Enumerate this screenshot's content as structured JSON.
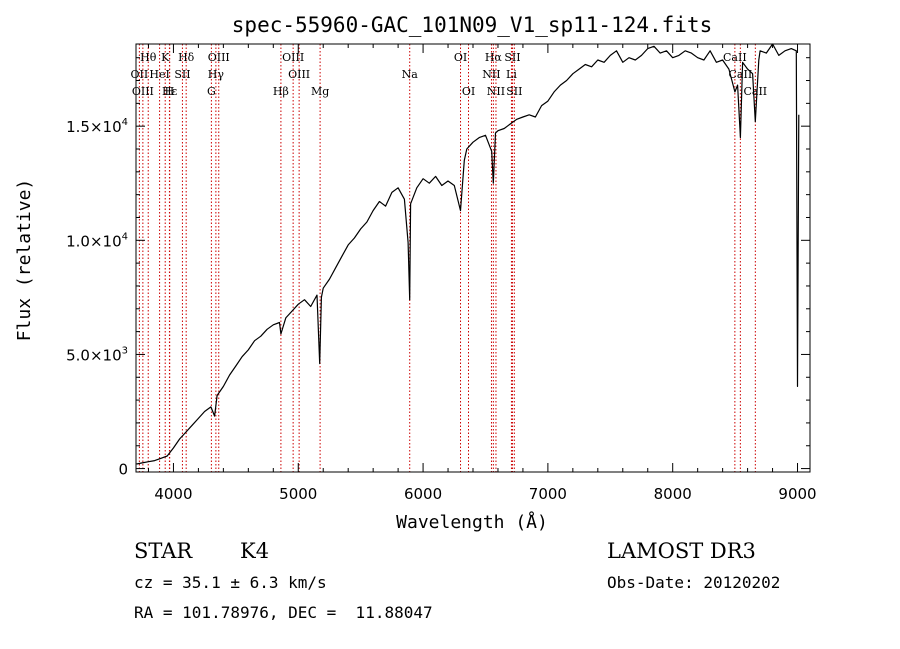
{
  "chart_data": {
    "type": "line",
    "title": "spec-55960-GAC_101N09_V1_sp11-124.fits",
    "xlabel": "Wavelength (Å)",
    "ylabel": "Flux (relative)",
    "xlim": [
      3700,
      9100
    ],
    "ylim": [
      -150,
      18600
    ],
    "xticks": [
      4000,
      5000,
      6000,
      7000,
      8000,
      9000
    ],
    "xtick_labels": [
      "4000",
      "5000",
      "6000",
      "7000",
      "8000",
      "9000"
    ],
    "yticks": [
      0,
      5000,
      10000,
      15000
    ],
    "ytick_labels": [
      {
        "mant": "0",
        "exp": ""
      },
      {
        "mant": "5.0×10",
        "exp": "3"
      },
      {
        "mant": "1.0×10",
        "exp": "4"
      },
      {
        "mant": "1.5×10",
        "exp": "4"
      }
    ],
    "series": [
      {
        "name": "spectrum",
        "x": [
          3705,
          3750,
          3800,
          3850,
          3900,
          3950,
          4000,
          4050,
          4100,
          4150,
          4200,
          4250,
          4300,
          4330,
          4350,
          4400,
          4450,
          4500,
          4550,
          4600,
          4650,
          4700,
          4750,
          4800,
          4850,
          4861,
          4900,
          4950,
          5000,
          5050,
          5100,
          5150,
          5172,
          5185,
          5200,
          5250,
          5300,
          5350,
          5400,
          5450,
          5500,
          5550,
          5600,
          5650,
          5700,
          5750,
          5800,
          5850,
          5880,
          5893,
          5900,
          5950,
          6000,
          6050,
          6100,
          6150,
          6200,
          6250,
          6300,
          6330,
          6350,
          6400,
          6450,
          6500,
          6550,
          6563,
          6580,
          6600,
          6650,
          6700,
          6750,
          6800,
          6850,
          6900,
          6950,
          7000,
          7050,
          7100,
          7150,
          7200,
          7250,
          7300,
          7350,
          7400,
          7450,
          7500,
          7550,
          7600,
          7650,
          7700,
          7750,
          7800,
          7850,
          7900,
          7950,
          8000,
          8050,
          8100,
          8150,
          8200,
          8250,
          8300,
          8350,
          8400,
          8450,
          8498,
          8520,
          8542,
          8560,
          8600,
          8640,
          8662,
          8690,
          8700,
          8750,
          8800,
          8850,
          8900,
          8950,
          8990,
          9000,
          9010
        ],
        "y": [
          200,
          250,
          300,
          350,
          450,
          550,
          900,
          1300,
          1600,
          1900,
          2200,
          2500,
          2700,
          2300,
          3200,
          3600,
          4100,
          4500,
          4900,
          5200,
          5600,
          5800,
          6100,
          6300,
          6400,
          5900,
          6600,
          6900,
          7200,
          7400,
          7100,
          7600,
          4600,
          7500,
          7900,
          8300,
          8800,
          9300,
          9800,
          10100,
          10500,
          10800,
          11300,
          11700,
          11500,
          12100,
          12300,
          11800,
          9900,
          7400,
          11600,
          12300,
          12700,
          12500,
          12800,
          12400,
          12600,
          12400,
          11300,
          13500,
          14000,
          14300,
          14500,
          14600,
          13900,
          12500,
          14700,
          14800,
          14900,
          15100,
          15300,
          15400,
          15500,
          15400,
          15900,
          16100,
          16500,
          16800,
          17000,
          17300,
          17500,
          17700,
          17600,
          17900,
          17800,
          18100,
          18300,
          17800,
          18000,
          17900,
          18100,
          18400,
          18500,
          18200,
          18300,
          18000,
          18100,
          18300,
          18200,
          18000,
          17900,
          18300,
          17800,
          17900,
          17500,
          16500,
          16800,
          14500,
          17800,
          17500,
          17300,
          15200,
          17900,
          18300,
          18200,
          18600,
          18100,
          18300,
          18400,
          18300,
          3600,
          15500
        ]
      }
    ],
    "lines": [
      {
        "label": "Hθ",
        "x": 3798,
        "row": 1,
        "color": "#cc0000"
      },
      {
        "label": "K",
        "x": 3934,
        "row": 1,
        "color": "#cc0000"
      },
      {
        "label": "Hδ",
        "x": 4102,
        "row": 1,
        "color": "#cc0000"
      },
      {
        "label": "OIII",
        "x": 4363,
        "row": 1,
        "color": "#cc0000"
      },
      {
        "label": "OIII",
        "x": 4959,
        "row": 1,
        "color": "#cc0000"
      },
      {
        "label": "OI",
        "x": 6300,
        "row": 1,
        "color": "#cc0000"
      },
      {
        "label": "Hα",
        "x": 6563,
        "row": 1,
        "color": "#cc0000"
      },
      {
        "label": "SII",
        "x": 6716,
        "row": 1,
        "color": "#cc0000"
      },
      {
        "label": "CaII",
        "x": 8498,
        "row": 1,
        "color": "#cc0000"
      },
      {
        "label": "OII",
        "x": 3727,
        "row": 2,
        "color": "#cc0000"
      },
      {
        "label": "HeI",
        "x": 3889,
        "row": 2,
        "color": "#cc0000"
      },
      {
        "label": "SII",
        "x": 4072,
        "row": 2,
        "color": "#cc0000"
      },
      {
        "label": "Hγ",
        "x": 4340,
        "row": 2,
        "color": "#cc0000"
      },
      {
        "label": "OIII",
        "x": 5007,
        "row": 2,
        "color": "#cc0000"
      },
      {
        "label": "Na",
        "x": 5893,
        "row": 2,
        "color": "#cc0000"
      },
      {
        "label": "NII",
        "x": 6548,
        "row": 2,
        "color": "#cc0000"
      },
      {
        "label": "Li",
        "x": 6708,
        "row": 2,
        "color": "#cc0000"
      },
      {
        "label": "CaII",
        "x": 8542,
        "row": 2,
        "color": "#cc0000"
      },
      {
        "label": "OIII",
        "x": 3755,
        "row": 3,
        "color": "#cc0000"
      },
      {
        "label": "Hε",
        "x": 3970,
        "row": 3,
        "color": "#cc0000"
      },
      {
        "label": "H",
        "x": 3968,
        "row": 3,
        "color": "#cc0000"
      },
      {
        "label": "G",
        "x": 4304,
        "row": 3,
        "color": "#cc0000"
      },
      {
        "label": "Hβ",
        "x": 4861,
        "row": 3,
        "color": "#cc0000"
      },
      {
        "label": "Mg",
        "x": 5175,
        "row": 3,
        "color": "#cc0000"
      },
      {
        "label": "OI",
        "x": 6364,
        "row": 3,
        "color": "#cc0000"
      },
      {
        "label": "NII",
        "x": 6584,
        "row": 3,
        "color": "#cc0000"
      },
      {
        "label": "SII",
        "x": 6731,
        "row": 3,
        "color": "#cc0000"
      },
      {
        "label": "CaII",
        "x": 8662,
        "row": 3,
        "color": "#cc0000"
      }
    ]
  },
  "info": {
    "class_label": "STAR",
    "subclass_label": "K4",
    "survey_label": "LAMOST DR3",
    "redshift_text": "cz = 35.1 ± 6.3 km/s",
    "obs_date_text": "Obs-Date: 20120202",
    "coords_text": "RA = 101.78976, DEC =  11.88047"
  }
}
